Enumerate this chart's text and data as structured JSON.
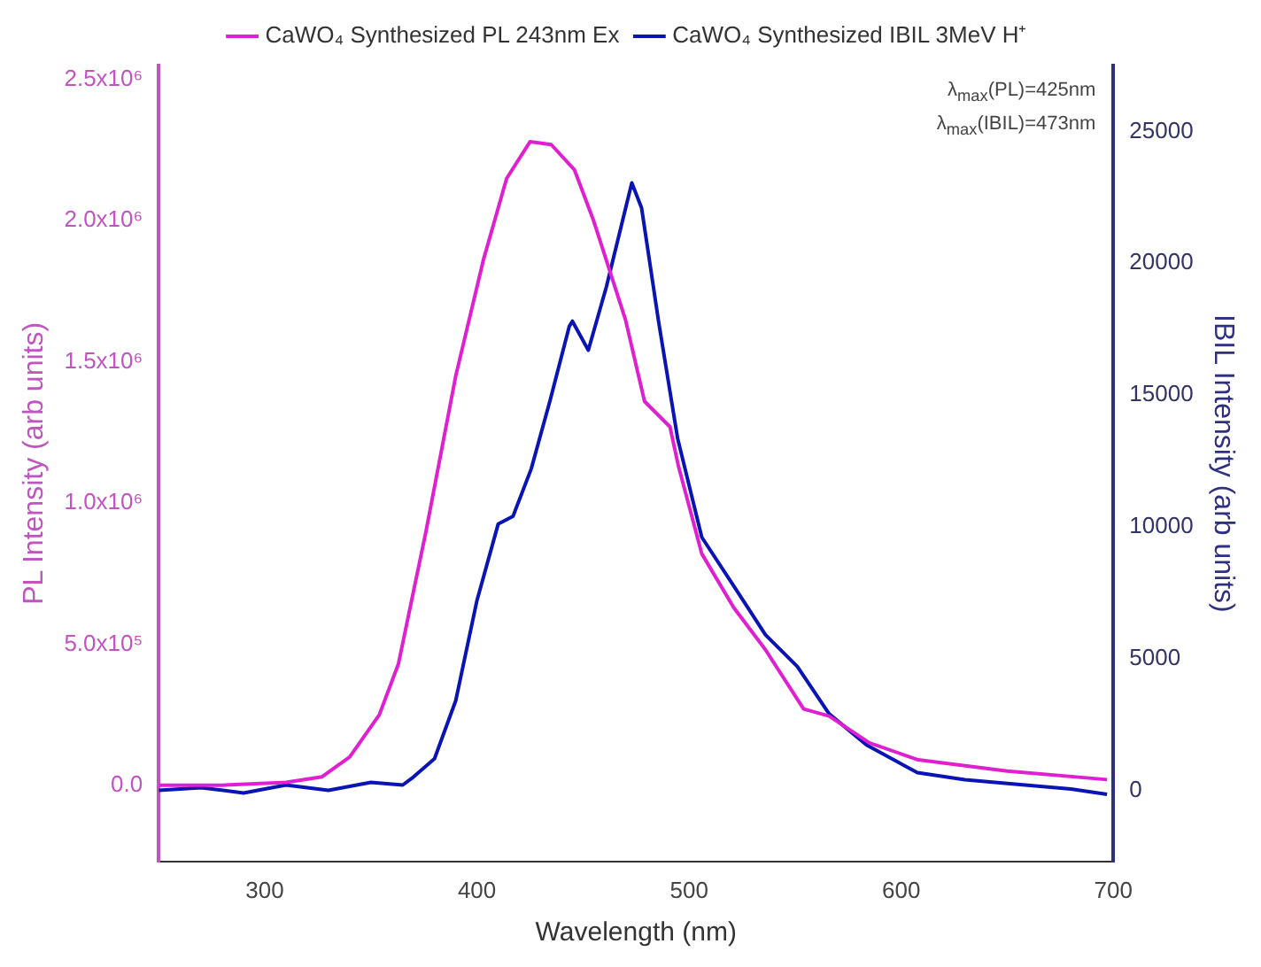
{
  "chart_data": {
    "type": "line",
    "xlabel": "Wavelength (nm)",
    "ylabel": "PL Intensity (arb units)",
    "y2label": "IBIL Intensity (arb units)",
    "xlim": [
      250,
      700
    ],
    "xticks": [
      300,
      400,
      500,
      600,
      700
    ],
    "ylim": [
      -270000,
      2550000
    ],
    "yticks": [
      {
        "value": 0,
        "label": "0.0"
      },
      {
        "value": 500000,
        "label": "5.0x10⁵"
      },
      {
        "value": 1000000,
        "label": "1.0x10⁶"
      },
      {
        "value": 1500000,
        "label": "1.5x10⁶"
      },
      {
        "value": 2000000,
        "label": "2.0x10⁶"
      },
      {
        "value": 2500000,
        "label": "2.5x10⁶"
      }
    ],
    "y2lim": [
      -2700,
      27500
    ],
    "y2ticks": [
      0,
      5000,
      10000,
      15000,
      20000,
      25000
    ],
    "legend": "top",
    "grid": false,
    "marker": "none",
    "line_style": "solid",
    "annotations": [
      "λ$_{max}$(PL)=425nm",
      "λ$_{max}$(IBIL)=473nm"
    ],
    "series": [
      {
        "name": "CaWO₄ Synthesized PL 243nm Ex",
        "color": "#e020d0",
        "x": [
          250,
          280,
          310,
          327,
          340,
          354,
          363,
          376,
          390,
          403,
          414,
          425,
          435,
          446,
          455,
          470,
          479,
          491,
          495,
          506,
          521,
          536,
          554,
          566,
          585,
          608,
          650,
          697
        ],
        "values": [
          0,
          0,
          10000,
          30000,
          100000,
          250000,
          430000,
          900000,
          1450000,
          1860000,
          2150000,
          2280000,
          2270000,
          2180000,
          2000000,
          1650000,
          1360000,
          1270000,
          1130000,
          820000,
          630000,
          480000,
          270000,
          245000,
          150000,
          90000,
          50000,
          20000
        ]
      },
      {
        "name": "CaWO₄ Synthesized IBIL 3MeV H⁺",
        "color": "#0a14b4",
        "axis": "y2",
        "x": [
          250,
          270,
          290,
          310,
          330,
          350,
          365,
          370,
          380,
          390,
          400,
          410,
          417,
          425.6,
          434.5,
          443.5,
          445,
          452.5,
          461,
          468.6,
          473,
          477.6,
          485.6,
          494.6,
          506,
          521.5,
          536,
          551,
          566,
          584,
          607.6,
          630,
          656,
          680,
          697
        ],
        "values": [
          0,
          100,
          -100,
          200,
          0,
          300,
          200,
          500,
          1200,
          3400,
          7200,
          10100,
          10400,
          12200,
          14800,
          17600,
          17800,
          16700,
          19100,
          21600,
          23050,
          22100,
          17800,
          13350,
          9600,
          7700,
          5900,
          4700,
          2900,
          1700,
          670,
          400,
          220,
          50,
          -150
        ]
      }
    ]
  }
}
